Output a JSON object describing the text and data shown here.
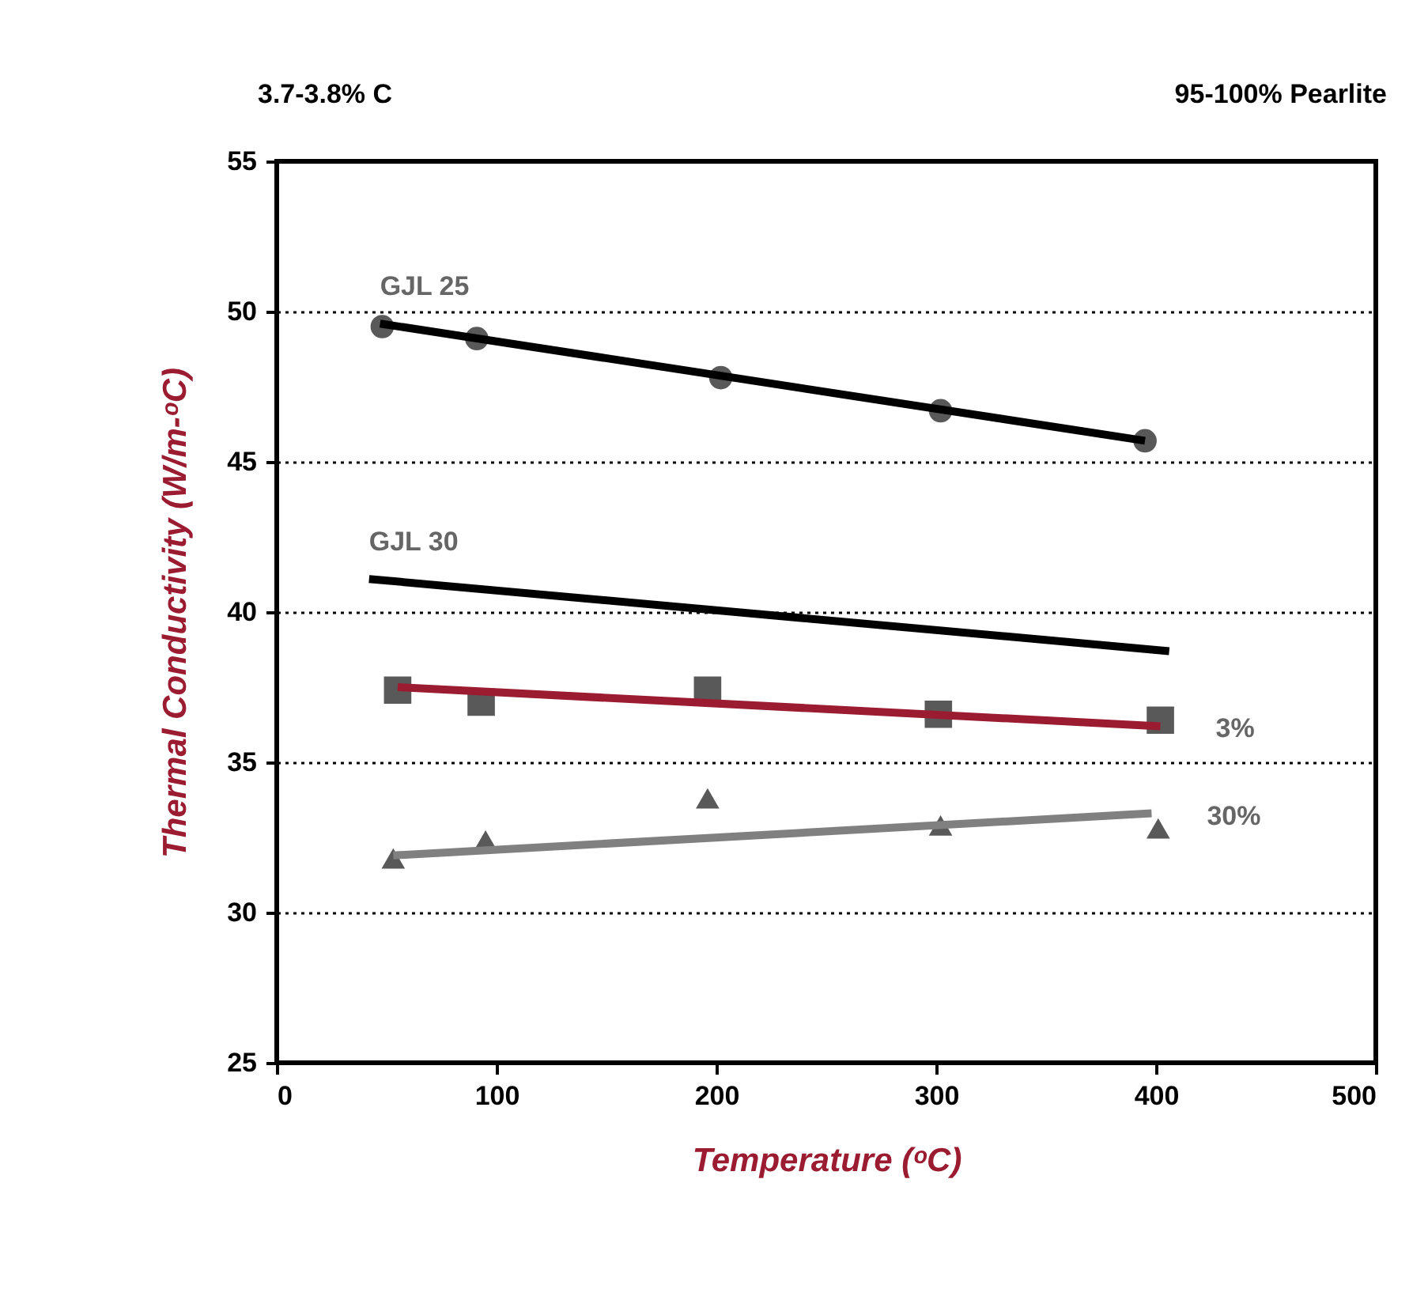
{
  "chart_data": {
    "type": "line",
    "xlabel": "Temperature (ᵒC)",
    "ylabel": "Thermal Conductivity (W/m-ᵒC)",
    "annotations": [
      "3.7-3.8% C",
      "95-100% Pearlite"
    ],
    "xlim": [
      0,
      500
    ],
    "xticks": [
      0,
      100,
      200,
      300,
      400,
      500
    ],
    "ylim": [
      25,
      55
    ],
    "yticks": [
      25,
      30,
      35,
      40,
      45,
      50,
      55
    ],
    "grid": "y",
    "series": [
      {
        "type": "line",
        "name": "GJL 25",
        "color": "#000000",
        "x": [
          47,
          395
        ],
        "values": [
          49.6,
          45.7
        ]
      },
      {
        "type": "scatter",
        "marker": "circle",
        "color": "#595959",
        "x": [
          48,
          91,
          202,
          302,
          395
        ],
        "values": [
          49.5,
          49.1,
          47.8,
          46.7,
          45.7
        ]
      },
      {
        "type": "line",
        "name": "GJL 30",
        "color": "#000000",
        "x": [
          42,
          406
        ],
        "values": [
          41.1,
          38.7
        ]
      },
      {
        "type": "line",
        "name": "3%",
        "color": "#9b1b30",
        "x": [
          55,
          402
        ],
        "values": [
          37.5,
          36.2
        ]
      },
      {
        "type": "scatter",
        "marker": "square",
        "color": "#595959",
        "x": [
          55,
          93,
          196,
          301,
          402
        ],
        "values": [
          37.4,
          37.0,
          37.4,
          36.6,
          36.4
        ]
      },
      {
        "type": "line",
        "name": "30%",
        "color": "#808080",
        "x": [
          53,
          398
        ],
        "values": [
          31.9,
          33.3
        ]
      },
      {
        "type": "scatter",
        "marker": "triangle",
        "color": "#595959",
        "x": [
          53,
          95,
          196,
          302,
          401
        ],
        "values": [
          31.8,
          32.4,
          33.8,
          32.9,
          32.8
        ]
      }
    ]
  }
}
